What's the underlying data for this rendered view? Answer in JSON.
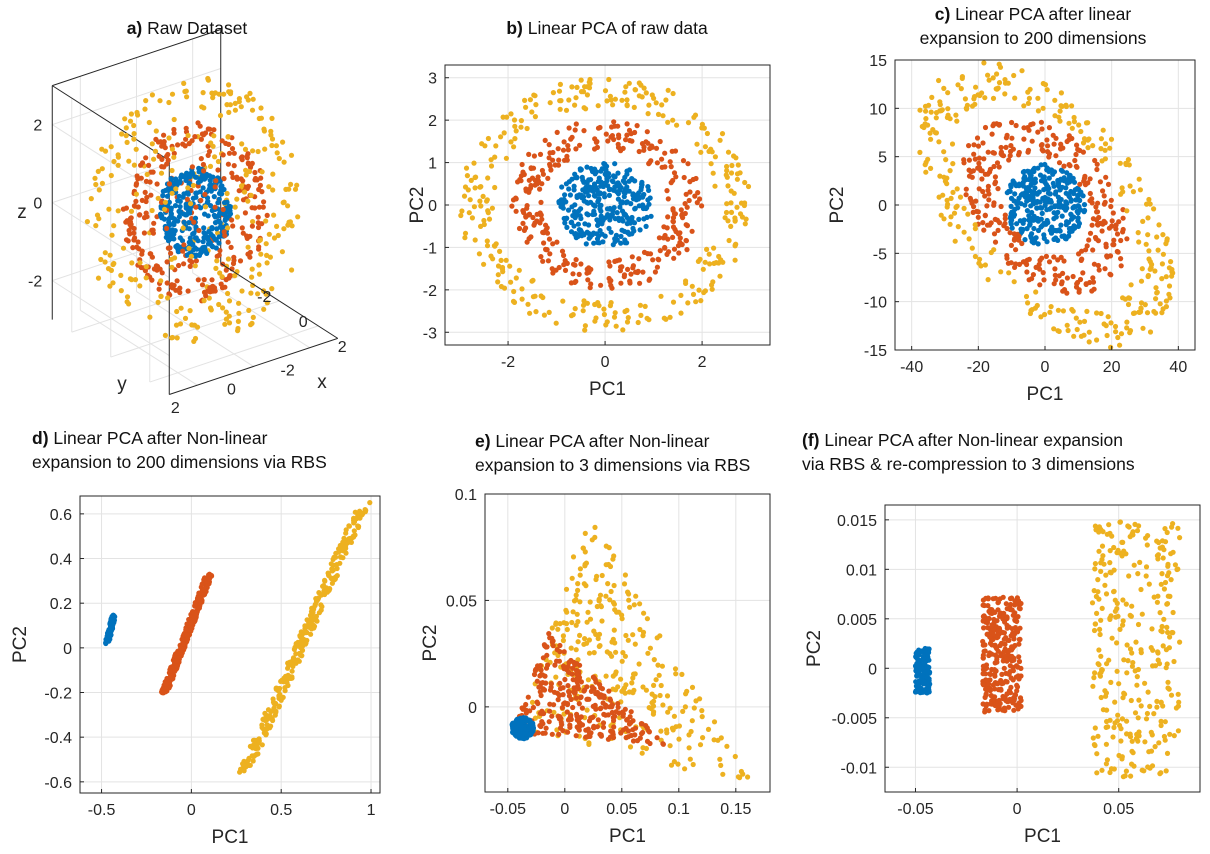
{
  "colors": {
    "blue": "#0072BD",
    "orange": "#D95319",
    "yellow": "#EDB120"
  },
  "chart_data": [
    {
      "id": "a",
      "type": "scatter",
      "projection": "3d",
      "title_letter": "a)",
      "title": "Raw Dataset",
      "xlabel": "x",
      "ylabel": "y",
      "zlabel": "z",
      "xticks": [
        -2,
        0,
        2
      ],
      "yticks": [
        2,
        0,
        -2
      ],
      "zticks": [
        2,
        0,
        -2
      ],
      "xlim": [
        -3,
        3
      ],
      "ylim": [
        -3,
        3
      ],
      "zlim": [
        -3,
        3
      ],
      "grid": true,
      "series": [
        {
          "color": "blue",
          "shape": "sphere",
          "radius": 1.0,
          "n": 300
        },
        {
          "color": "orange",
          "shape": "sphere",
          "radius": 2.0,
          "n": 300
        },
        {
          "color": "yellow",
          "shape": "sphere",
          "radius": 3.0,
          "n": 300
        }
      ]
    },
    {
      "id": "b",
      "type": "scatter",
      "title_letter": "b)",
      "title": "Linear PCA of raw data",
      "xlabel": "PC1",
      "ylabel": "PC2",
      "xlim": [
        -3.3,
        3.4
      ],
      "ylim": [
        -3.3,
        3.3
      ],
      "xticks": [
        -2,
        0,
        2
      ],
      "yticks": [
        3,
        2,
        1,
        0,
        -1,
        -2,
        -3
      ],
      "grid": true,
      "series": [
        {
          "color": "blue",
          "shape": "disk",
          "cx": 0,
          "cy": 0,
          "r": 1.0,
          "n": 300
        },
        {
          "color": "orange",
          "shape": "ring",
          "cx": 0,
          "cy": 0,
          "r_in": 1.3,
          "r_out": 2.0,
          "n": 300
        },
        {
          "color": "yellow",
          "shape": "ring",
          "cx": 0,
          "cy": 0,
          "r_in": 2.3,
          "r_out": 3.0,
          "n": 300
        }
      ]
    },
    {
      "id": "c",
      "type": "scatter",
      "title_letter": "c)",
      "title_lines": [
        "Linear PCA after linear",
        "expansion to 200 dimensions"
      ],
      "xlabel": "PC1",
      "ylabel": "PC2",
      "xlim": [
        -45,
        45
      ],
      "ylim": [
        -15,
        15
      ],
      "xticks": [
        -40,
        -20,
        0,
        20,
        40
      ],
      "yticks": [
        15,
        10,
        5,
        0,
        -5,
        -10,
        -15
      ],
      "grid": true,
      "series": [
        {
          "color": "blue",
          "shape": "disk",
          "cx": 0,
          "cy": 0,
          "rx": 12,
          "ry": 4.2,
          "n": 300
        },
        {
          "color": "orange",
          "shape": "ring",
          "cx": 0,
          "cy": 0,
          "rx_in": 14,
          "rx_out": 25,
          "ry_in": 5,
          "ry_out": 8.5,
          "rot": -0.15,
          "n": 300
        },
        {
          "color": "yellow",
          "shape": "ring",
          "cx": 0,
          "cy": 0,
          "rx_in": 28,
          "rx_out": 40,
          "ry_in": 9,
          "ry_out": 12.5,
          "rot": -0.22,
          "n": 300
        }
      ]
    },
    {
      "id": "d",
      "type": "scatter",
      "title_letter": "d)",
      "title_lines": [
        "Linear PCA after Non-linear",
        "expansion to 200 dimensions via RBS"
      ],
      "xlabel": "PC1",
      "ylabel": "PC2",
      "xlim": [
        -0.62,
        1.05
      ],
      "ylim": [
        -0.65,
        0.68
      ],
      "xticks": [
        -0.5,
        0,
        0.5,
        1
      ],
      "yticks": [
        0.6,
        0.4,
        0.2,
        0,
        -0.2,
        -0.4,
        -0.6
      ],
      "grid": true,
      "series": [
        {
          "color": "blue",
          "shape": "band",
          "x0": -0.47,
          "y0": 0.02,
          "x1": -0.43,
          "y1": 0.15,
          "width": 0.025,
          "n": 120
        },
        {
          "color": "orange",
          "shape": "band",
          "x0": -0.15,
          "y0": -0.2,
          "x1": 0.1,
          "y1": 0.33,
          "width": 0.05,
          "n": 300
        },
        {
          "color": "yellow",
          "shape": "band",
          "x0": 0.3,
          "y0": -0.55,
          "x1": 0.95,
          "y1": 0.63,
          "width": 0.09,
          "n": 300
        }
      ]
    },
    {
      "id": "e",
      "type": "scatter",
      "title_letter": "e)",
      "title_lines": [
        "Linear PCA after Non-linear",
        "expansion to 3 dimensions via RBS"
      ],
      "xlabel": "PC1",
      "ylabel": "PC2",
      "xlim": [
        -0.07,
        0.18
      ],
      "ylim": [
        -0.04,
        0.1
      ],
      "xticks": [
        -0.05,
        0,
        0.05,
        0.1,
        0.15
      ],
      "yticks": [
        0.1,
        0.05,
        0
      ],
      "xtick_labels": [
        "-0.05",
        "0",
        "0.05",
        "0.1",
        "0.15"
      ],
      "ytick_labels": [
        "0.1",
        "0.05",
        "0"
      ],
      "grid": true,
      "series": [
        {
          "color": "yellow",
          "shape": "triangle",
          "p1": [
            -0.04,
            -0.01
          ],
          "p2": [
            0.02,
            0.092
          ],
          "p3": [
            0.165,
            -0.037
          ],
          "n": 300
        },
        {
          "color": "orange",
          "shape": "triangle",
          "p1": [
            -0.045,
            -0.012
          ],
          "p2": [
            -0.015,
            0.035
          ],
          "p3": [
            0.09,
            -0.018
          ],
          "n": 300
        },
        {
          "color": "blue",
          "shape": "disk",
          "cx": -0.037,
          "cy": -0.01,
          "rx": 0.01,
          "ry": 0.005,
          "n": 200
        }
      ]
    },
    {
      "id": "f",
      "type": "scatter",
      "title_letter": "(f)",
      "title_lines": [
        "Linear PCA after Non-linear expansion",
        "via RBS & re-compression to 3 dimensions"
      ],
      "title_bold_letter": true,
      "xlabel": "PC1",
      "ylabel": "PC2",
      "xlim": [
        -0.065,
        0.09
      ],
      "ylim": [
        -0.0125,
        0.0165
      ],
      "xticks": [
        -0.05,
        0,
        0.05
      ],
      "yticks": [
        0.015,
        0.01,
        0.005,
        0,
        -0.005,
        -0.01
      ],
      "xtick_labels": [
        "-0.05",
        "0",
        "0.05"
      ],
      "ytick_labels": [
        "0.015",
        "0.01",
        "0.005",
        "0",
        "-0.005",
        "-0.01"
      ],
      "grid": true,
      "series": [
        {
          "color": "blue",
          "shape": "blob",
          "x0": -0.05,
          "x1": -0.043,
          "y0": -0.0025,
          "y1": 0.002,
          "n": 150
        },
        {
          "color": "orange",
          "shape": "blob",
          "x0": -0.017,
          "x1": 0.002,
          "y0": -0.0045,
          "y1": 0.0072,
          "n": 300
        },
        {
          "color": "yellow",
          "shape": "blob",
          "x0": 0.037,
          "x1": 0.08,
          "y0": -0.011,
          "y1": 0.0148,
          "n": 300
        }
      ]
    }
  ]
}
